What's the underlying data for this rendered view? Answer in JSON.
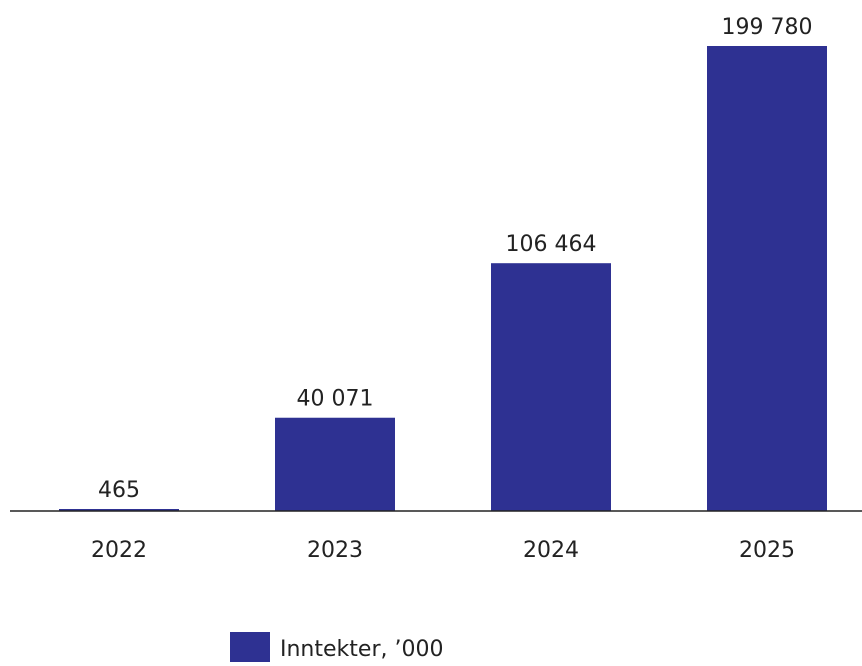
{
  "chart_data": {
    "type": "bar",
    "categories": [
      "2022",
      "2023",
      "2024",
      "2025"
    ],
    "values": [
      465,
      40071,
      106464,
      199780
    ],
    "value_labels": [
      "465",
      "40 071",
      "106 464",
      "199 780"
    ],
    "ylim": [
      0,
      199780
    ],
    "grid": false,
    "legend": {
      "label": "Inntekter, ’000",
      "placement": "bottom-center"
    },
    "colors": {
      "bar": "#2e3192",
      "axis": "#222222",
      "text": "#222222"
    }
  }
}
